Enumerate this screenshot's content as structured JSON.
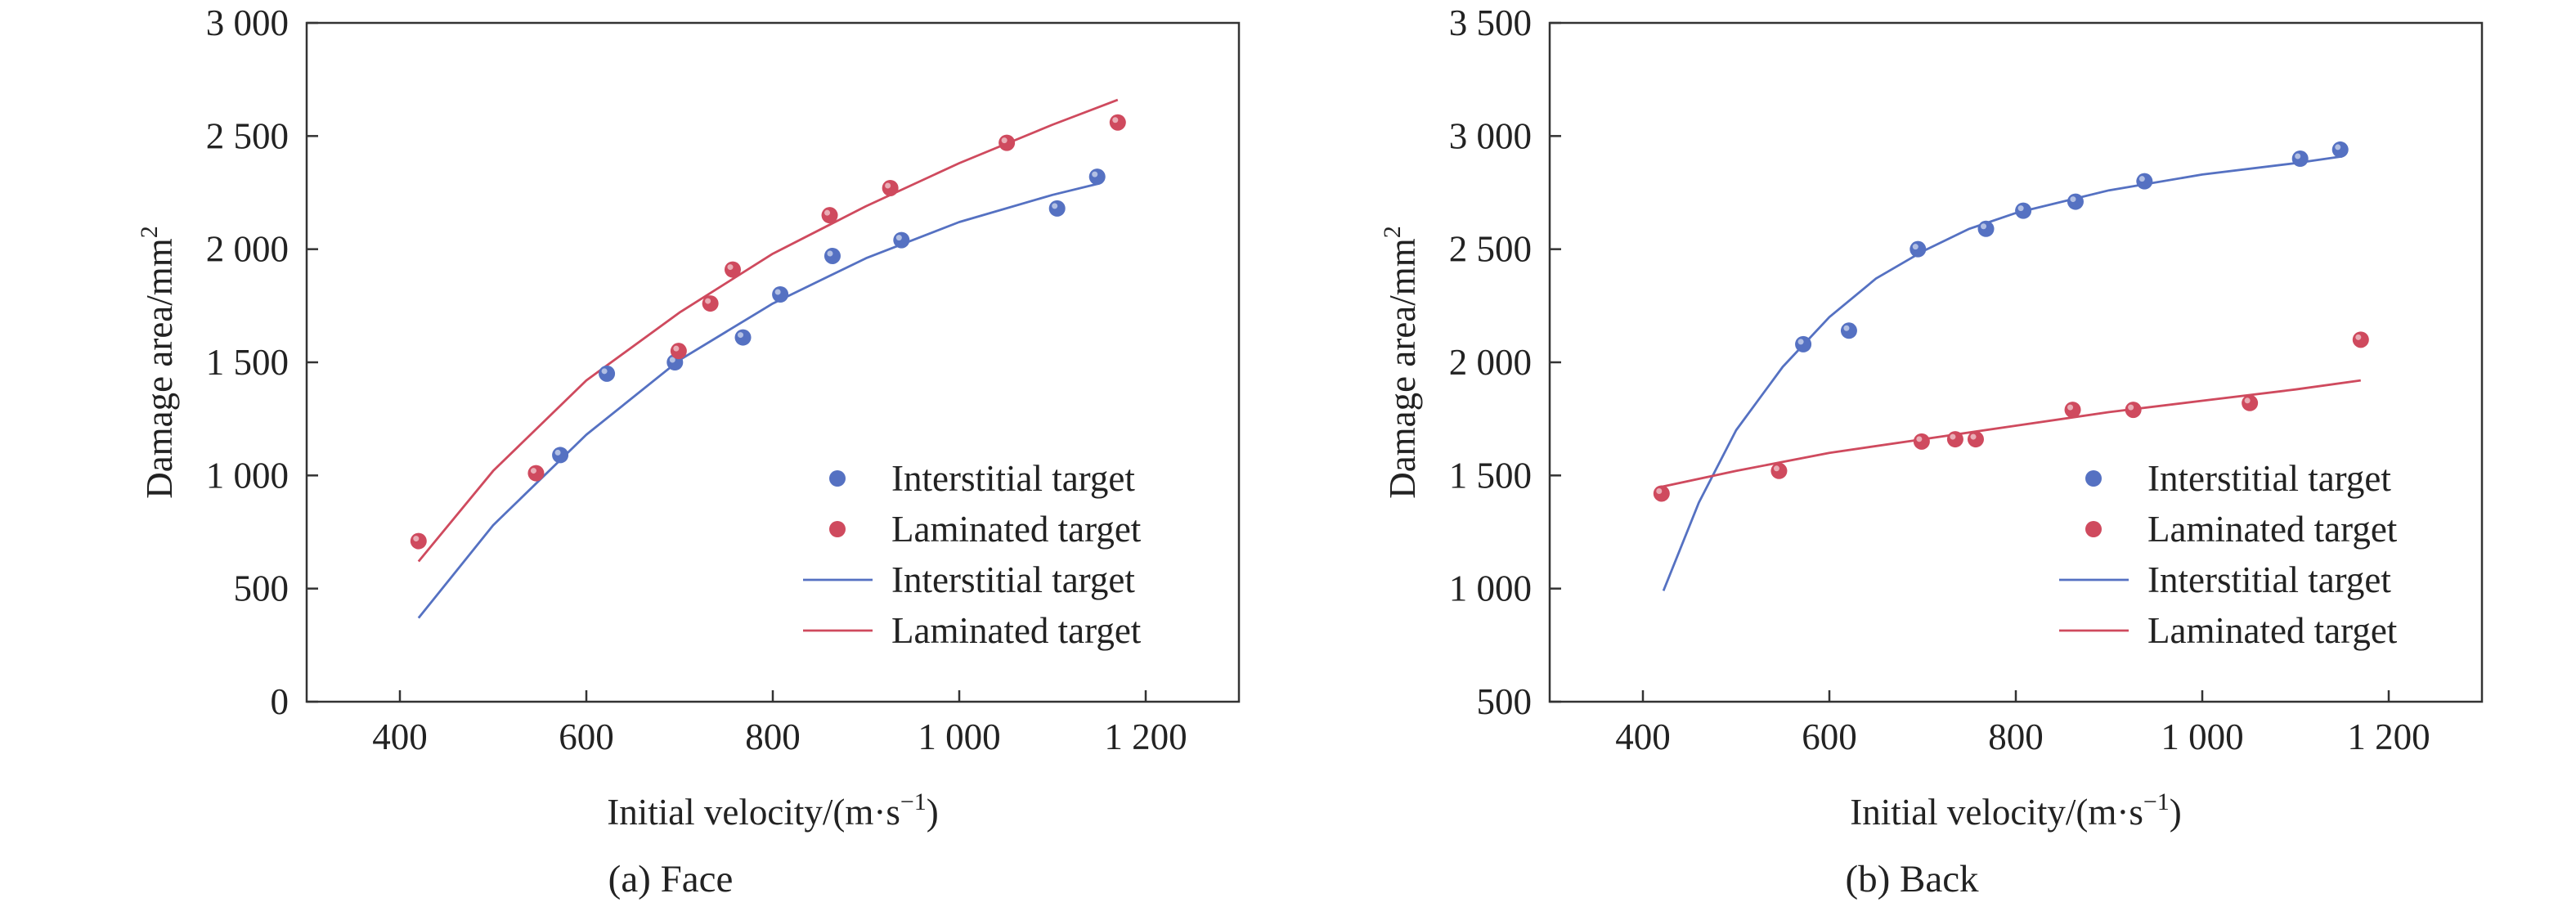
{
  "colors": {
    "interstitial": "#5571c2",
    "laminated": "#cf4a5e",
    "axis": "#333333"
  },
  "chart_data": [
    {
      "type": "scatter",
      "caption": "(a) Face",
      "xlabel": "Initial velocity/(m·s",
      "xlabel_sup": "−1",
      "xlabel_end": ")",
      "ylabel": "Damage area/mm",
      "ylabel_sup": "2",
      "xlim": [
        300,
        1300
      ],
      "ylim": [
        0,
        3000
      ],
      "xticks": [
        400,
        600,
        800,
        1000,
        1200
      ],
      "xtick_labels": [
        "400",
        "600",
        "800",
        "1 000",
        "1 200"
      ],
      "yticks": [
        0,
        500,
        1000,
        1500,
        2000,
        2500,
        3000
      ],
      "ytick_labels": [
        "0",
        "500",
        "1 000",
        "1 500",
        "2 000",
        "2 500",
        "3 000"
      ],
      "legend": [
        "Interstitial target",
        "Laminated target",
        "Interstitial target",
        "Laminated target"
      ],
      "legend_position": "bottom-right",
      "series": [
        {
          "name": "Interstitial target",
          "kind": "points",
          "color": "interstitial",
          "x": [
            572,
            622,
            695,
            768,
            808,
            864,
            938,
            1105,
            1148
          ],
          "y": [
            1090,
            1450,
            1500,
            1610,
            1800,
            1970,
            2040,
            2180,
            2320
          ]
        },
        {
          "name": "Laminated target",
          "kind": "points",
          "color": "laminated",
          "x": [
            420,
            546,
            699,
            733,
            757,
            861,
            926,
            1051,
            1170
          ],
          "y": [
            710,
            1010,
            1550,
            1760,
            1910,
            2150,
            2270,
            2470,
            2560
          ]
        },
        {
          "name": "Interstitial target",
          "kind": "line",
          "color": "interstitial",
          "x": [
            420,
            500,
            600,
            700,
            800,
            900,
            1000,
            1100,
            1150
          ],
          "y": [
            370,
            780,
            1180,
            1510,
            1760,
            1960,
            2120,
            2240,
            2290
          ]
        },
        {
          "name": "Laminated target",
          "kind": "line",
          "color": "laminated",
          "x": [
            420,
            500,
            600,
            700,
            800,
            900,
            1000,
            1100,
            1170
          ],
          "y": [
            620,
            1020,
            1420,
            1720,
            1980,
            2190,
            2380,
            2550,
            2660
          ]
        }
      ]
    },
    {
      "type": "scatter",
      "caption": "(b) Back",
      "xlabel": "Initial velocity/(m·s",
      "xlabel_sup": "−1",
      "xlabel_end": ")",
      "ylabel": "Damage area/mm",
      "ylabel_sup": "2",
      "xlim": [
        300,
        1300
      ],
      "ylim": [
        500,
        3500
      ],
      "xticks": [
        400,
        600,
        800,
        1000,
        1200
      ],
      "xtick_labels": [
        "400",
        "600",
        "800",
        "1 000",
        "1 200"
      ],
      "yticks": [
        500,
        1000,
        1500,
        2000,
        2500,
        3000,
        3500
      ],
      "ytick_labels": [
        "500",
        "1 000",
        "1 500",
        "2 000",
        "2 500",
        "3 000",
        "3 500"
      ],
      "legend": [
        "Interstitial target",
        "Laminated target",
        "Interstitial target",
        "Laminated target"
      ],
      "legend_position": "bottom-right",
      "series": [
        {
          "name": "Interstitial target",
          "kind": "points",
          "color": "interstitial",
          "x": [
            572,
            621,
            695,
            768,
            808,
            864,
            938,
            1105,
            1148
          ],
          "y": [
            2080,
            2140,
            2500,
            2590,
            2670,
            2710,
            2800,
            2900,
            2940
          ]
        },
        {
          "name": "Laminated target",
          "kind": "points",
          "color": "laminated",
          "x": [
            420,
            546,
            699,
            735,
            757,
            861,
            926,
            1051,
            1170
          ],
          "y": [
            1420,
            1520,
            1650,
            1660,
            1660,
            1790,
            1790,
            1820,
            2100
          ]
        },
        {
          "name": "Interstitial target",
          "kind": "line",
          "color": "interstitial",
          "x": [
            422,
            460,
            500,
            550,
            600,
            650,
            700,
            750,
            800,
            900,
            1000,
            1100,
            1150
          ],
          "y": [
            990,
            1380,
            1700,
            1980,
            2200,
            2370,
            2490,
            2590,
            2660,
            2760,
            2830,
            2880,
            2910
          ]
        },
        {
          "name": "Laminated target",
          "kind": "line",
          "color": "laminated",
          "x": [
            420,
            500,
            600,
            700,
            800,
            900,
            1000,
            1100,
            1170
          ],
          "y": [
            1450,
            1520,
            1600,
            1660,
            1720,
            1780,
            1830,
            1880,
            1920
          ]
        }
      ]
    }
  ]
}
